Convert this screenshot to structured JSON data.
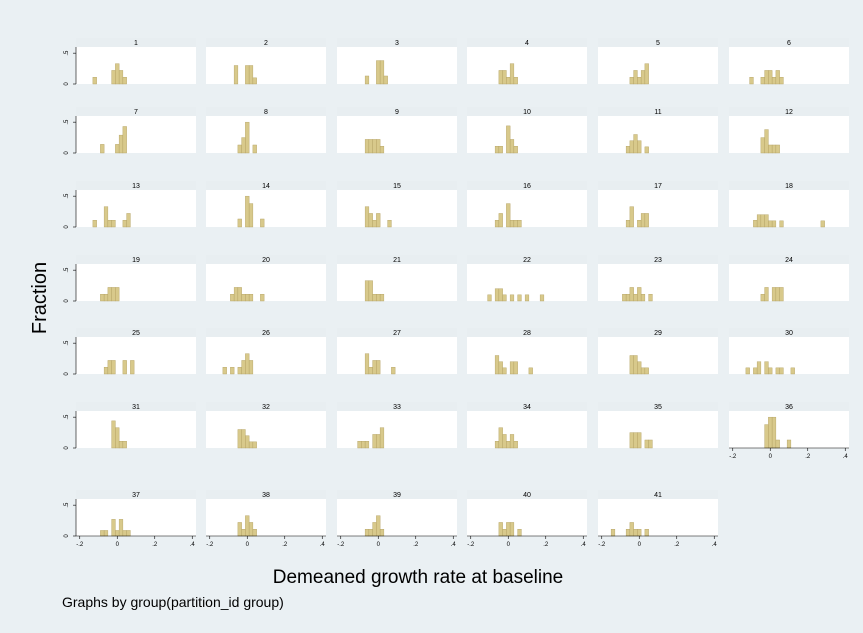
{
  "colors": {
    "background": "#eaf0f3",
    "panel": "#ffffff",
    "strip": "#e8eef1",
    "bar_fill": "#d8c98b",
    "bar_stroke": "#b19f5f",
    "axis": "#000000"
  },
  "chart_data": {
    "type": "bar",
    "subtype": "histogram-small-multiples",
    "xlabel": "Demeaned growth rate at baseline",
    "ylabel": "Fraction",
    "note": "Graphs by group(partition_id group)",
    "xlim": [
      -0.22,
      0.42
    ],
    "ylim": [
      0,
      0.6
    ],
    "xticks": [
      -0.2,
      0,
      0.2,
      0.4
    ],
    "xtick_labels": [
      "-.2",
      "0",
      ".2",
      ".4"
    ],
    "yticks": [
      0,
      0.5
    ],
    "ytick_labels": [
      "0",
      ".5"
    ],
    "bin_width": 0.02,
    "panels": [
      {
        "label": "1",
        "bars": [
          [
            -0.12,
            0.11
          ],
          [
            -0.02,
            0.22
          ],
          [
            0.0,
            0.33
          ],
          [
            0.02,
            0.22
          ],
          [
            0.04,
            0.11
          ]
        ]
      },
      {
        "label": "2",
        "bars": [
          [
            -0.06,
            0.3
          ],
          [
            0.0,
            0.3
          ],
          [
            0.02,
            0.3
          ],
          [
            0.04,
            0.1
          ]
        ]
      },
      {
        "label": "3",
        "bars": [
          [
            -0.06,
            0.13
          ],
          [
            0.0,
            0.38
          ],
          [
            0.02,
            0.38
          ],
          [
            0.04,
            0.13
          ]
        ]
      },
      {
        "label": "4",
        "bars": [
          [
            -0.04,
            0.22
          ],
          [
            -0.02,
            0.22
          ],
          [
            0.0,
            0.11
          ],
          [
            0.02,
            0.33
          ],
          [
            0.04,
            0.11
          ]
        ]
      },
      {
        "label": "5",
        "bars": [
          [
            -0.04,
            0.11
          ],
          [
            -0.02,
            0.22
          ],
          [
            0.0,
            0.11
          ],
          [
            0.02,
            0.22
          ],
          [
            0.04,
            0.33
          ]
        ]
      },
      {
        "label": "6",
        "bars": [
          [
            -0.1,
            0.11
          ],
          [
            -0.04,
            0.11
          ],
          [
            -0.02,
            0.22
          ],
          [
            0.0,
            0.22
          ],
          [
            0.02,
            0.11
          ],
          [
            0.04,
            0.22
          ],
          [
            0.06,
            0.11
          ]
        ]
      },
      {
        "label": "7",
        "bars": [
          [
            -0.08,
            0.14
          ],
          [
            0.0,
            0.14
          ],
          [
            0.02,
            0.29
          ],
          [
            0.04,
            0.43
          ]
        ]
      },
      {
        "label": "8",
        "bars": [
          [
            -0.04,
            0.13
          ],
          [
            -0.02,
            0.25
          ],
          [
            0.0,
            0.5
          ],
          [
            0.04,
            0.13
          ]
        ]
      },
      {
        "label": "9",
        "bars": [
          [
            -0.06,
            0.22
          ],
          [
            -0.04,
            0.22
          ],
          [
            -0.02,
            0.22
          ],
          [
            0.0,
            0.22
          ],
          [
            0.02,
            0.11
          ]
        ]
      },
      {
        "label": "10",
        "bars": [
          [
            -0.06,
            0.11
          ],
          [
            -0.04,
            0.11
          ],
          [
            0.0,
            0.44
          ],
          [
            0.02,
            0.22
          ],
          [
            0.04,
            0.11
          ]
        ]
      },
      {
        "label": "11",
        "bars": [
          [
            -0.06,
            0.11
          ],
          [
            -0.04,
            0.2
          ],
          [
            -0.02,
            0.3
          ],
          [
            0.0,
            0.2
          ],
          [
            0.04,
            0.1
          ]
        ]
      },
      {
        "label": "12",
        "bars": [
          [
            -0.04,
            0.25
          ],
          [
            -0.02,
            0.38
          ],
          [
            0.0,
            0.13
          ],
          [
            0.02,
            0.13
          ],
          [
            0.04,
            0.13
          ]
        ]
      },
      {
        "label": "13",
        "bars": [
          [
            -0.12,
            0.11
          ],
          [
            -0.06,
            0.33
          ],
          [
            -0.04,
            0.11
          ],
          [
            -0.02,
            0.11
          ],
          [
            0.04,
            0.11
          ],
          [
            0.06,
            0.22
          ]
        ]
      },
      {
        "label": "14",
        "bars": [
          [
            -0.04,
            0.13
          ],
          [
            0.0,
            0.5
          ],
          [
            0.02,
            0.38
          ],
          [
            0.08,
            0.13
          ]
        ]
      },
      {
        "label": "15",
        "bars": [
          [
            -0.06,
            0.33
          ],
          [
            -0.04,
            0.22
          ],
          [
            -0.02,
            0.11
          ],
          [
            0.0,
            0.22
          ],
          [
            0.06,
            0.11
          ]
        ]
      },
      {
        "label": "16",
        "bars": [
          [
            -0.06,
            0.11
          ],
          [
            -0.04,
            0.22
          ],
          [
            0.0,
            0.38
          ],
          [
            0.02,
            0.11
          ],
          [
            0.04,
            0.11
          ],
          [
            0.06,
            0.11
          ]
        ]
      },
      {
        "label": "17",
        "bars": [
          [
            -0.06,
            0.11
          ],
          [
            -0.04,
            0.33
          ],
          [
            0.0,
            0.11
          ],
          [
            0.02,
            0.22
          ],
          [
            0.04,
            0.22
          ]
        ]
      },
      {
        "label": "18",
        "bars": [
          [
            -0.08,
            0.11
          ],
          [
            -0.06,
            0.2
          ],
          [
            -0.04,
            0.2
          ],
          [
            -0.02,
            0.2
          ],
          [
            0.0,
            0.1
          ],
          [
            0.02,
            0.1
          ],
          [
            0.06,
            0.1
          ],
          [
            0.28,
            0.1
          ]
        ]
      },
      {
        "label": "19",
        "bars": [
          [
            -0.08,
            0.11
          ],
          [
            -0.06,
            0.11
          ],
          [
            -0.04,
            0.22
          ],
          [
            -0.02,
            0.22
          ],
          [
            0.0,
            0.22
          ]
        ]
      },
      {
        "label": "20",
        "bars": [
          [
            -0.08,
            0.11
          ],
          [
            -0.06,
            0.22
          ],
          [
            -0.04,
            0.22
          ],
          [
            -0.02,
            0.11
          ],
          [
            0.0,
            0.11
          ],
          [
            0.02,
            0.11
          ],
          [
            0.08,
            0.11
          ]
        ]
      },
      {
        "label": "21",
        "bars": [
          [
            -0.06,
            0.33
          ],
          [
            -0.04,
            0.33
          ],
          [
            -0.02,
            0.11
          ],
          [
            0.0,
            0.11
          ],
          [
            0.02,
            0.11
          ]
        ]
      },
      {
        "label": "22",
        "bars": [
          [
            -0.1,
            0.1
          ],
          [
            -0.06,
            0.2
          ],
          [
            -0.04,
            0.2
          ],
          [
            -0.02,
            0.1
          ],
          [
            0.02,
            0.1
          ],
          [
            0.06,
            0.1
          ],
          [
            0.1,
            0.1
          ],
          [
            0.18,
            0.1
          ]
        ]
      },
      {
        "label": "23",
        "bars": [
          [
            -0.08,
            0.11
          ],
          [
            -0.06,
            0.11
          ],
          [
            -0.04,
            0.22
          ],
          [
            -0.02,
            0.11
          ],
          [
            0.0,
            0.22
          ],
          [
            0.02,
            0.11
          ],
          [
            0.06,
            0.11
          ]
        ]
      },
      {
        "label": "24",
        "bars": [
          [
            -0.04,
            0.11
          ],
          [
            -0.02,
            0.22
          ],
          [
            0.02,
            0.22
          ],
          [
            0.04,
            0.22
          ],
          [
            0.06,
            0.22
          ]
        ]
      },
      {
        "label": "25",
        "bars": [
          [
            -0.06,
            0.11
          ],
          [
            -0.04,
            0.22
          ],
          [
            -0.02,
            0.22
          ],
          [
            0.04,
            0.22
          ],
          [
            0.08,
            0.22
          ]
        ]
      },
      {
        "label": "26",
        "bars": [
          [
            -0.12,
            0.11
          ],
          [
            -0.08,
            0.11
          ],
          [
            -0.04,
            0.11
          ],
          [
            -0.02,
            0.22
          ],
          [
            0.0,
            0.33
          ],
          [
            0.02,
            0.22
          ]
        ]
      },
      {
        "label": "27",
        "bars": [
          [
            -0.06,
            0.33
          ],
          [
            -0.04,
            0.11
          ],
          [
            -0.02,
            0.22
          ],
          [
            0.0,
            0.22
          ],
          [
            0.08,
            0.11
          ]
        ]
      },
      {
        "label": "28",
        "bars": [
          [
            -0.06,
            0.3
          ],
          [
            -0.04,
            0.2
          ],
          [
            -0.02,
            0.1
          ],
          [
            0.02,
            0.2
          ],
          [
            0.04,
            0.2
          ],
          [
            0.12,
            0.1
          ]
        ]
      },
      {
        "label": "29",
        "bars": [
          [
            -0.04,
            0.3
          ],
          [
            -0.02,
            0.3
          ],
          [
            0.0,
            0.2
          ],
          [
            0.02,
            0.1
          ],
          [
            0.04,
            0.1
          ]
        ]
      },
      {
        "label": "30",
        "bars": [
          [
            -0.12,
            0.1
          ],
          [
            -0.08,
            0.1
          ],
          [
            -0.06,
            0.2
          ],
          [
            -0.02,
            0.2
          ],
          [
            0.0,
            0.1
          ],
          [
            0.04,
            0.1
          ],
          [
            0.06,
            0.1
          ],
          [
            0.12,
            0.1
          ]
        ]
      },
      {
        "label": "31",
        "bars": [
          [
            -0.02,
            0.44
          ],
          [
            0.0,
            0.33
          ],
          [
            0.02,
            0.11
          ],
          [
            0.04,
            0.11
          ]
        ]
      },
      {
        "label": "32",
        "bars": [
          [
            -0.04,
            0.3
          ],
          [
            -0.02,
            0.3
          ],
          [
            0.0,
            0.2
          ],
          [
            0.02,
            0.1
          ],
          [
            0.04,
            0.1
          ]
        ]
      },
      {
        "label": "33",
        "bars": [
          [
            -0.1,
            0.11
          ],
          [
            -0.08,
            0.11
          ],
          [
            -0.06,
            0.11
          ],
          [
            -0.02,
            0.22
          ],
          [
            0.0,
            0.22
          ],
          [
            0.02,
            0.33
          ]
        ]
      },
      {
        "label": "34",
        "bars": [
          [
            -0.06,
            0.11
          ],
          [
            -0.04,
            0.33
          ],
          [
            -0.02,
            0.22
          ],
          [
            0.0,
            0.11
          ],
          [
            0.02,
            0.22
          ],
          [
            0.04,
            0.11
          ]
        ]
      },
      {
        "label": "35",
        "bars": [
          [
            -0.04,
            0.25
          ],
          [
            -0.02,
            0.25
          ],
          [
            0.0,
            0.25
          ],
          [
            0.04,
            0.13
          ],
          [
            0.06,
            0.13
          ]
        ]
      },
      {
        "label": "36",
        "bars": [
          [
            -0.02,
            0.38
          ],
          [
            0.0,
            0.5
          ],
          [
            0.02,
            0.5
          ],
          [
            0.04,
            0.13
          ],
          [
            0.1,
            0.13
          ]
        ]
      },
      {
        "label": "37",
        "bars": [
          [
            -0.08,
            0.09
          ],
          [
            -0.06,
            0.09
          ],
          [
            -0.02,
            0.27
          ],
          [
            0.0,
            0.09
          ],
          [
            0.02,
            0.27
          ],
          [
            0.04,
            0.09
          ],
          [
            0.06,
            0.09
          ]
        ]
      },
      {
        "label": "38",
        "bars": [
          [
            -0.04,
            0.22
          ],
          [
            -0.02,
            0.11
          ],
          [
            0.0,
            0.33
          ],
          [
            0.02,
            0.22
          ],
          [
            0.04,
            0.11
          ]
        ]
      },
      {
        "label": "39",
        "bars": [
          [
            -0.06,
            0.11
          ],
          [
            -0.04,
            0.11
          ],
          [
            -0.02,
            0.22
          ],
          [
            0.0,
            0.33
          ],
          [
            0.02,
            0.11
          ]
        ]
      },
      {
        "label": "40",
        "bars": [
          [
            -0.04,
            0.22
          ],
          [
            -0.02,
            0.11
          ],
          [
            0.0,
            0.22
          ],
          [
            0.02,
            0.22
          ],
          [
            0.06,
            0.11
          ]
        ]
      },
      {
        "label": "41",
        "bars": [
          [
            -0.14,
            0.11
          ],
          [
            -0.06,
            0.11
          ],
          [
            -0.04,
            0.22
          ],
          [
            -0.02,
            0.11
          ],
          [
            0.0,
            0.11
          ],
          [
            0.04,
            0.11
          ]
        ]
      }
    ]
  }
}
